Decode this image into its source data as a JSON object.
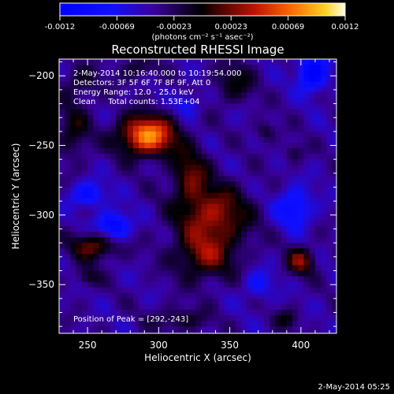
{
  "chart_data": {
    "type": "heatmap",
    "title": "Reconstructed RHESSI Image",
    "xlabel": "Heliocentric X (arcsec)",
    "ylabel": "Heliocentric Y (arcsec)",
    "xlim": [
      230,
      425
    ],
    "ylim": [
      -385,
      -188
    ],
    "x_ticks": [
      250,
      300,
      350,
      400
    ],
    "y_ticks": [
      -200,
      -250,
      -300,
      -350
    ],
    "colorbar": {
      "label": "(photons cm⁻² s⁻¹ asec⁻²)",
      "range": [
        -0.0012,
        0.0012
      ],
      "ticks": [
        "-0.0012",
        "-0.00069",
        "-0.00023",
        "0.00023",
        "0.00069",
        "0.0012"
      ]
    },
    "annotations": [
      "2-May-2014 10:16:40.000 to 10:19:54.000",
      "Detectors: 3F 5F 6F 7F 8F 9F, Att 0",
      "Energy Range: 12.0 - 25.0 keV",
      "Clean     Total counts: 1.53E+04"
    ],
    "peak_text": "Position of Peak = [292,-243]",
    "peak": {
      "x": 292,
      "y": -243,
      "value": 0.0012
    },
    "sources": [
      {
        "x": 292,
        "y": -243,
        "sx": 14,
        "sy": 10,
        "amp": 0.00125
      },
      {
        "x": 322,
        "y": -270,
        "sx": 9,
        "sy": 13,
        "amp": 0.00055
      },
      {
        "x": 338,
        "y": -300,
        "sx": 18,
        "sy": 15,
        "amp": 0.00075
      },
      {
        "x": 332,
        "y": -330,
        "sx": 15,
        "sy": 12,
        "amp": 0.0006
      },
      {
        "x": 255,
        "y": -322,
        "sx": 12,
        "sy": 7,
        "amp": 0.00065
      },
      {
        "x": 400,
        "y": -333,
        "sx": 7,
        "sy": 7,
        "amp": 0.00065
      },
      {
        "x": 240,
        "y": -240,
        "sx": 8,
        "sy": 14,
        "amp": 0.0004
      },
      {
        "x": 353,
        "y": -205,
        "sx": 10,
        "sy": 10,
        "amp": 0.0004
      },
      {
        "x": 285,
        "y": -195,
        "sx": 8,
        "sy": 6,
        "amp": 0.00035
      },
      {
        "x": 245,
        "y": -205,
        "sx": 10,
        "sy": 9,
        "amp": 0.0003
      },
      {
        "x": 315,
        "y": -375,
        "sx": 14,
        "sy": 6,
        "amp": 0.00035
      },
      {
        "x": 375,
        "y": -240,
        "sx": 5,
        "sy": 5,
        "amp": 0.00035
      },
      {
        "x": 390,
        "y": -375,
        "sx": 6,
        "sy": 5,
        "amp": 0.00035
      },
      {
        "x": 395,
        "y": -255,
        "sx": 5,
        "sy": 5,
        "amp": 0.0003
      },
      {
        "x": 250,
        "y": -345,
        "sx": 6,
        "sy": 5,
        "amp": 0.00035
      },
      {
        "x": 408,
        "y": -198,
        "sx": 7,
        "sy": 9,
        "amp": -0.0009
      },
      {
        "x": 268,
        "y": -308,
        "sx": 8,
        "sy": 7,
        "amp": -0.0008
      },
      {
        "x": 395,
        "y": -295,
        "sx": 9,
        "sy": 10,
        "amp": -0.0006
      },
      {
        "x": 250,
        "y": -285,
        "sx": 8,
        "sy": 6,
        "amp": -0.0006
      },
      {
        "x": 320,
        "y": -220,
        "sx": 6,
        "sy": 6,
        "amp": -0.0004
      },
      {
        "x": 370,
        "y": -350,
        "sx": 7,
        "sy": 7,
        "amp": -0.0004
      }
    ]
  },
  "footer": {
    "timestamp": "2-May-2014 05:25"
  }
}
